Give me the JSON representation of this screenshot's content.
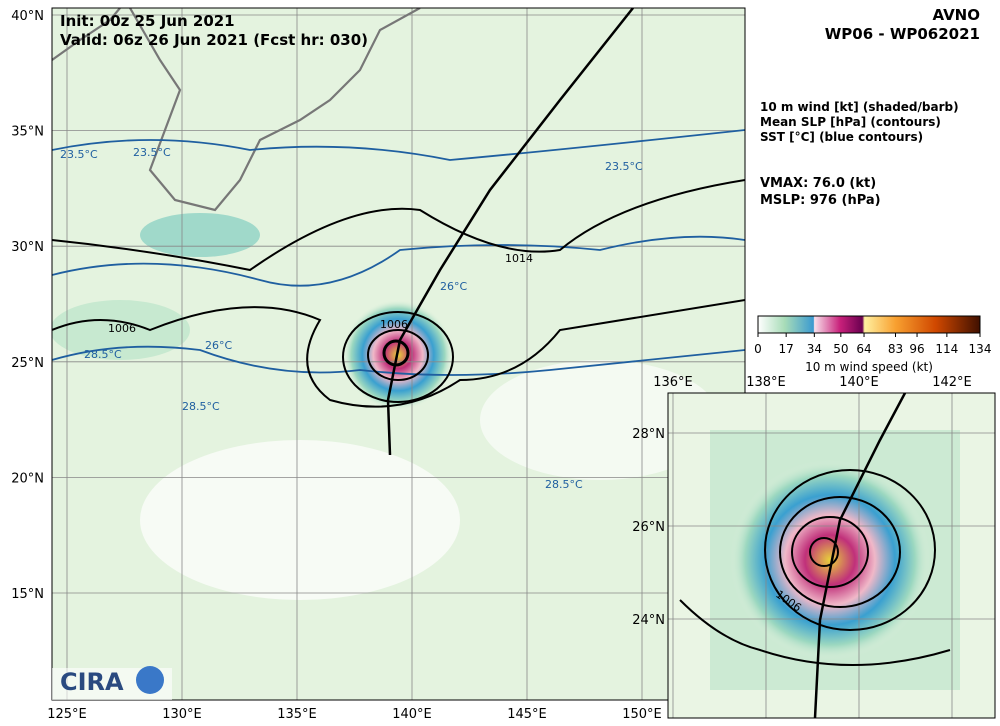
{
  "header": {
    "init": "Init:   00z 25 Jun 2021",
    "valid": "Valid: 06z 26 Jun 2021 (Fcst hr: 030)",
    "model": "AVNO",
    "storm": "WP06 - WP062021"
  },
  "legend": {
    "lines": [
      "10 m wind [kt] (shaded/barb)",
      "Mean SLP [hPa] (contours)",
      "SST [°C] (blue contours)"
    ],
    "vmax": "VMAX:  76.0 (kt)",
    "mslp": "MSLP:  976 (hPa)"
  },
  "colorbar": {
    "label": "10 m wind speed (kt)",
    "range": [
      0,
      134
    ],
    "ticks": [
      0,
      17,
      34,
      50,
      64,
      83,
      96,
      114,
      134
    ]
  },
  "map": {
    "lat_labels": [
      "40°N",
      "35°N",
      "30°N",
      "25°N",
      "20°N",
      "15°N"
    ],
    "lon_labels": [
      "125°E",
      "130°E",
      "135°E",
      "140°E",
      "145°E",
      "150°E"
    ],
    "contour_labels": [
      "23.5°C",
      "23.5°C",
      "23.5°C",
      "26°C",
      "26°C",
      "28.5°C",
      "28.5°C",
      "28.5°C",
      "1006",
      "1006",
      "1014"
    ],
    "logo": "CIRA"
  },
  "inset": {
    "lat_labels": [
      "28°N",
      "26°N",
      "24°N"
    ],
    "lon_labels": [
      "136°E",
      "138°E",
      "140°E",
      "142°E"
    ],
    "contour_labels": [
      "1006"
    ]
  }
}
